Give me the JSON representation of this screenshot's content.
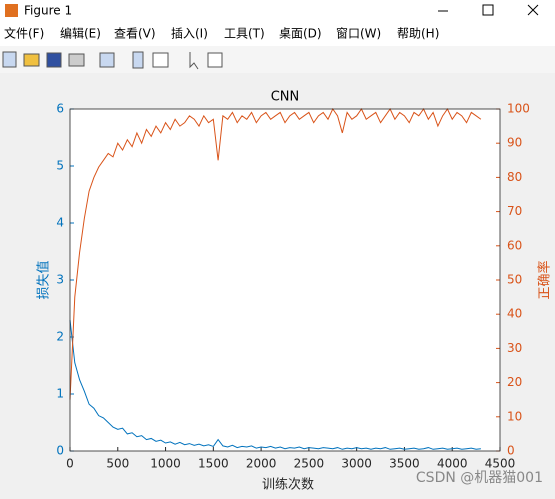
{
  "window": {
    "title": "Figure 1",
    "menu": [
      "文件(F)",
      "编辑(E)",
      "查看(V)",
      "插入(I)",
      "工具(T)",
      "桌面(D)",
      "窗口(W)",
      "帮助(H)"
    ],
    "watermark": "CSDN @机器猫001"
  },
  "chart_data": {
    "type": "line",
    "title": "CNN",
    "x_label": "训练次数",
    "y_label": "损失值",
    "y2_label": "正确率",
    "x": [
      0,
      50,
      100,
      150,
      200,
      250,
      300,
      350,
      400,
      450,
      500,
      550,
      600,
      650,
      700,
      750,
      800,
      850,
      900,
      950,
      1000,
      1050,
      1100,
      1150,
      1200,
      1250,
      1300,
      1350,
      1400,
      1450,
      1500,
      1550,
      1600,
      1650,
      1700,
      1750,
      1800,
      1850,
      1900,
      1950,
      2000,
      2050,
      2100,
      2150,
      2200,
      2250,
      2300,
      2350,
      2400,
      2450,
      2500,
      2550,
      2600,
      2650,
      2700,
      2750,
      2800,
      2850,
      2900,
      2950,
      3000,
      3050,
      3100,
      3150,
      3200,
      3250,
      3300,
      3350,
      3400,
      3450,
      3500,
      3550,
      3600,
      3650,
      3700,
      3750,
      3800,
      3850,
      3900,
      3950,
      4000,
      4050,
      4100,
      4150,
      4200,
      4250,
      4300
    ],
    "series": [
      {
        "name": "损失值",
        "color": "#0072bd",
        "axis": "y",
        "values": [
          2.3,
          1.55,
          1.25,
          1.05,
          0.82,
          0.75,
          0.62,
          0.58,
          0.5,
          0.42,
          0.38,
          0.4,
          0.3,
          0.32,
          0.25,
          0.27,
          0.2,
          0.22,
          0.17,
          0.19,
          0.14,
          0.16,
          0.12,
          0.15,
          0.11,
          0.13,
          0.1,
          0.12,
          0.09,
          0.11,
          0.08,
          0.2,
          0.09,
          0.07,
          0.1,
          0.06,
          0.08,
          0.07,
          0.09,
          0.05,
          0.07,
          0.06,
          0.08,
          0.05,
          0.07,
          0.04,
          0.06,
          0.05,
          0.07,
          0.04,
          0.06,
          0.05,
          0.04,
          0.06,
          0.05,
          0.04,
          0.06,
          0.03,
          0.05,
          0.04,
          0.06,
          0.04,
          0.05,
          0.03,
          0.05,
          0.04,
          0.06,
          0.03,
          0.04,
          0.05,
          0.03,
          0.04,
          0.05,
          0.03,
          0.04,
          0.06,
          0.03,
          0.04,
          0.05,
          0.03,
          0.04,
          0.05,
          0.03,
          0.04,
          0.05,
          0.03,
          0.04
        ]
      },
      {
        "name": "正确率",
        "color": "#d95319",
        "axis": "y2",
        "values": [
          15,
          45,
          58,
          68,
          76,
          80,
          83,
          85,
          87,
          86,
          90,
          88,
          91,
          89,
          93,
          90,
          94,
          92,
          95,
          93,
          96,
          94,
          97,
          95,
          96,
          98,
          97,
          95,
          98,
          96,
          97,
          85,
          98,
          97,
          99,
          96,
          98,
          97,
          99,
          96,
          98,
          99,
          97,
          98,
          99,
          96,
          98,
          99,
          97,
          98,
          99,
          96,
          98,
          99,
          97,
          100,
          98,
          93,
          99,
          97,
          98,
          100,
          97,
          98,
          99,
          96,
          98,
          100,
          97,
          99,
          98,
          96,
          99,
          98,
          100,
          97,
          99,
          95,
          98,
          100,
          97,
          99,
          98,
          96,
          99,
          98,
          97
        ]
      }
    ],
    "xlim": [
      0,
      4500
    ],
    "xticks": [
      0,
      500,
      1000,
      1500,
      2000,
      2500,
      3000,
      3500,
      4000,
      4500
    ],
    "ylim": [
      0,
      6
    ],
    "yticks": [
      0,
      1,
      2,
      3,
      4,
      5,
      6
    ],
    "y2lim": [
      0,
      100
    ],
    "y2ticks": [
      0,
      10,
      20,
      30,
      40,
      50,
      60,
      70,
      80,
      90,
      100
    ]
  }
}
